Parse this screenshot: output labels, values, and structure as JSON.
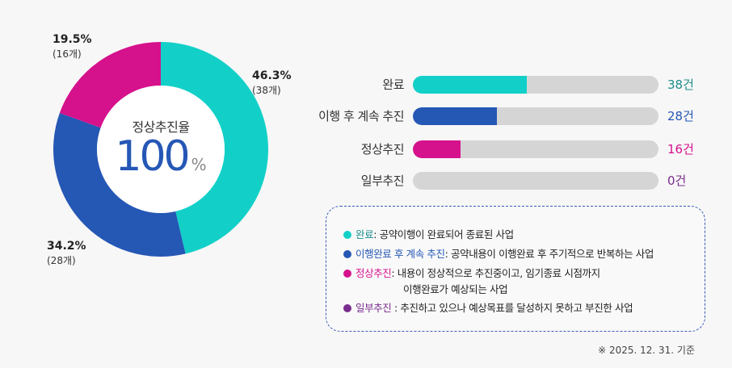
{
  "chart_data": [
    {
      "type": "pie",
      "variant": "donut",
      "center": {
        "title": "정상추진율",
        "value": "100",
        "unit": "%"
      },
      "slices": [
        {
          "pct": "46.3%",
          "value": 46.3,
          "count": "(38개)",
          "color": "#12d0c8"
        },
        {
          "pct": "34.2%",
          "value": 34.2,
          "count": "(28개)",
          "color": "#2557b5"
        },
        {
          "pct": "19.5%",
          "value": 19.5,
          "count": "(16개)",
          "color": "#d6118c"
        }
      ]
    },
    {
      "type": "bar",
      "orientation": "horizontal",
      "max": 82,
      "track_color": "#d5d5d5",
      "bars": [
        {
          "label": "완료",
          "value": 38,
          "value_label": "38건",
          "color": "#12d0c8",
          "text_color": "#1c8e8a"
        },
        {
          "label": "이행 후 계속 추진",
          "value": 28,
          "value_label": "28건",
          "color": "#2557b5",
          "text_color": "#2557b5"
        },
        {
          "label": "정상추진",
          "value": 16,
          "value_label": "16건",
          "color": "#d6118c",
          "text_color": "#d6118c"
        },
        {
          "label": "일부추진",
          "value": 0,
          "value_label": "0건",
          "color": "#7a2c8f",
          "text_color": "#7a2c8f"
        }
      ]
    }
  ],
  "legend": [
    {
      "term": "완료",
      "desc": ": 공약이행이 완료되어 종료된 사업",
      "color": "#12d0c8",
      "term_color": "#1c8e8a"
    },
    {
      "term": "이행완료 후 계속 추진",
      "desc": ": 공약내용이 이행완료 후 주기적으로 반복하는 사업",
      "color": "#2557b5",
      "term_color": "#2557b5"
    },
    {
      "term": "정상추진",
      "desc": ": 내용이 정상적으로 추진중이고, 임기종료 시점까지",
      "desc2": "이행완료가 예상되는 사업",
      "color": "#d6118c",
      "term_color": "#d6118c"
    },
    {
      "term": "일부추진",
      "desc": " : 추진하고 있으나 예상목표를 달성하지 못하고 부진한 사업",
      "color": "#7a2c8f",
      "term_color": "#7a2c8f"
    }
  ],
  "footnote": "※ 2025. 12. 31. 기준"
}
